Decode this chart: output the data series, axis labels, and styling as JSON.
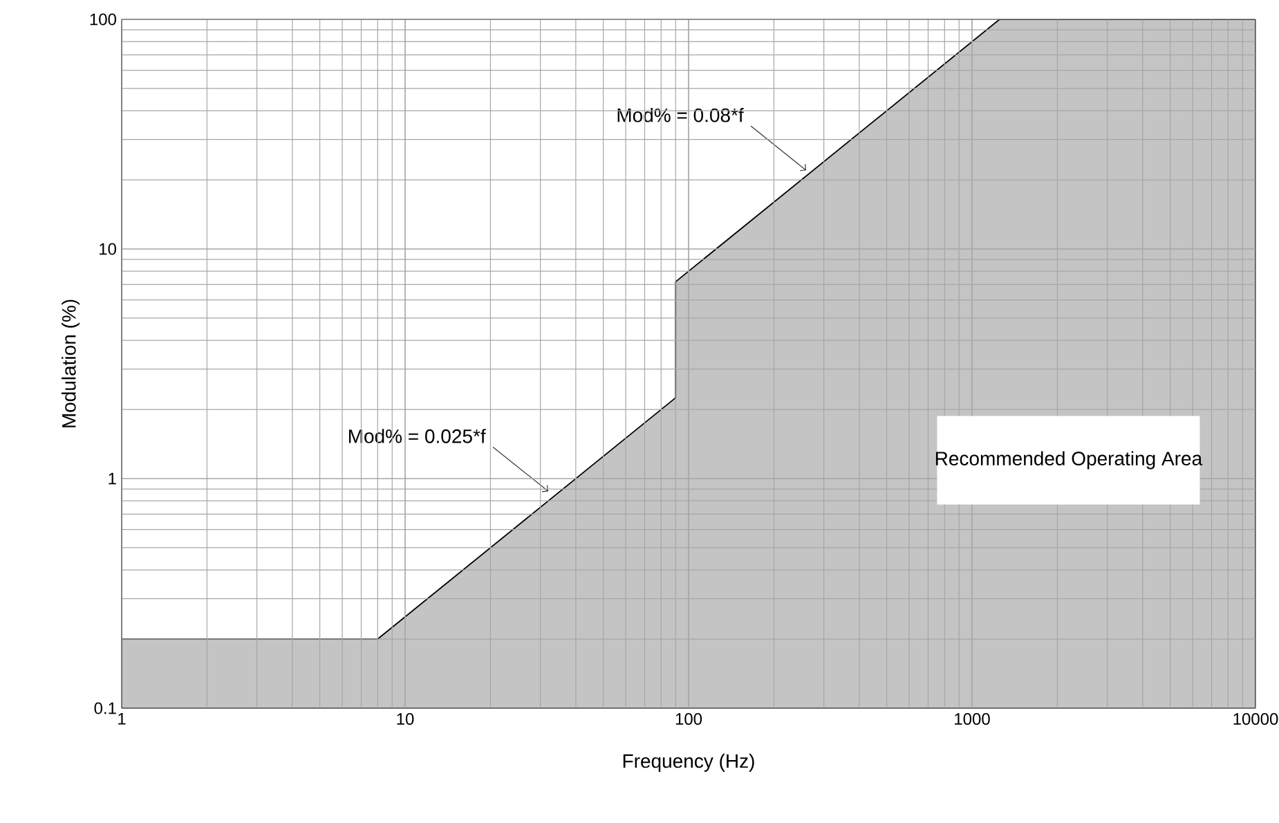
{
  "chart_data": {
    "type": "area",
    "xlabel": "Frequency (Hz)",
    "ylabel": "Modulation (%)",
    "x": [
      1,
      8,
      90,
      90,
      1250,
      10000
    ],
    "series": [
      {
        "color": "#c4c4c4",
        "values": [
          0.2,
          0.2,
          2.25,
          7.2,
          100,
          100
        ]
      }
    ],
    "log": "xy",
    "grid": true,
    "xlim": [
      1,
      10000
    ],
    "ylim": [
      0.1,
      100
    ],
    "xticks": [
      1,
      10,
      100,
      1000,
      10000
    ],
    "yticks": [
      0.1,
      1,
      10,
      100
    ],
    "annotations": [
      {
        "text": "Mod% = 0.08*f",
        "x": 260,
        "y": 22
      },
      {
        "text": "Mod% = 0.025*f",
        "x": 32,
        "y": 0.88
      },
      "Recommended Operating Area"
    ]
  }
}
